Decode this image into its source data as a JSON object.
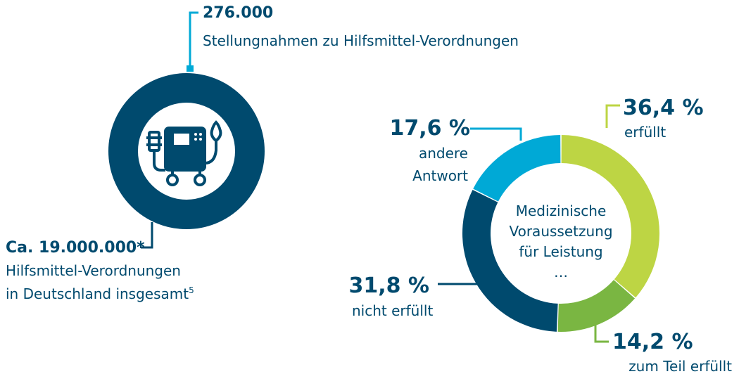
{
  "infographic": {
    "statements": {
      "number": "276.000",
      "label": "Stellungnahmen zu Hilfsmittel-Verordnungen"
    },
    "total": {
      "number": "Ca. 19.000.000*",
      "lines": [
        "Hilfsmittel-Verordnungen",
        "in Deutschland insgesamt"
      ],
      "footnote": "5"
    }
  },
  "chart_data": {
    "type": "donut",
    "center_text": [
      "Medizinische",
      "Voraussetzung",
      "für Leistung",
      "…"
    ],
    "categories": [
      [
        "erfüllt"
      ],
      [
        "zum Teil erfüllt"
      ],
      [
        "nicht erfüllt"
      ],
      [
        "andere",
        "Antwort"
      ]
    ],
    "values": [
      36.4,
      14.2,
      31.8,
      17.6
    ],
    "value_labels": [
      "36,4 %",
      "14,2 %",
      "31,8 %",
      "17,6 %"
    ],
    "colors": [
      "#bdd544",
      "#7ab642",
      "#004a6e",
      "#00a9d6"
    ]
  }
}
